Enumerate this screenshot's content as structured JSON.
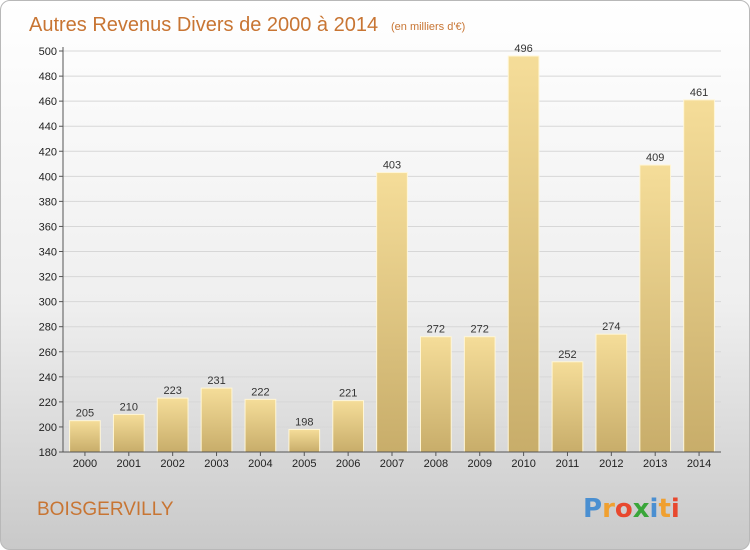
{
  "chart_data": {
    "type": "bar",
    "title": "Autres Revenus Divers de 2000 à 2014",
    "subtitle": "(en milliers d'€)",
    "categories": [
      "2000",
      "2001",
      "2002",
      "2003",
      "2004",
      "2005",
      "2006",
      "2007",
      "2008",
      "2009",
      "2010",
      "2011",
      "2012",
      "2013",
      "2014"
    ],
    "values": [
      205,
      210,
      223,
      231,
      222,
      198,
      221,
      403,
      272,
      272,
      496,
      252,
      274,
      409,
      461
    ],
    "ylim": [
      180,
      500
    ],
    "yticks": [
      180,
      200,
      220,
      240,
      260,
      280,
      300,
      320,
      340,
      360,
      380,
      400,
      420,
      440,
      460,
      480,
      500
    ],
    "grid": true,
    "bar_color": "#e8cc82"
  },
  "place_name": "BOISGERVILLY",
  "logo": {
    "letters": [
      "P",
      "r",
      "o",
      "x",
      "i",
      "t",
      "i"
    ],
    "colors": [
      "#4a8fd1",
      "#f0a030",
      "#e8482e",
      "#3aa63a",
      "#4a8fd1",
      "#f0a030",
      "#e8482e"
    ]
  }
}
